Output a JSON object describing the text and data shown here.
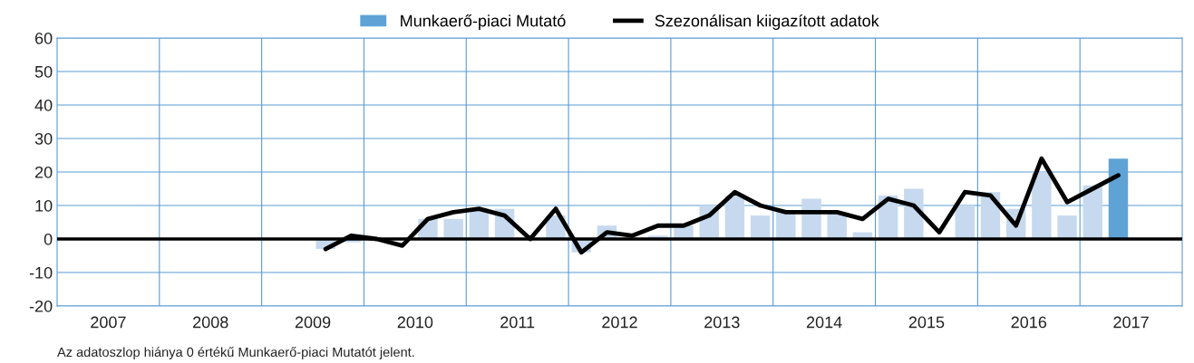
{
  "chart_data": {
    "type": "bar",
    "x": [
      2009.125,
      2009.375,
      2009.625,
      2009.875,
      2010.125,
      2010.375,
      2010.625,
      2010.875,
      2011.125,
      2011.375,
      2011.625,
      2011.875,
      2012.125,
      2012.375,
      2012.625,
      2012.875,
      2013.125,
      2013.375,
      2013.625,
      2013.875,
      2014.125,
      2014.375,
      2014.625,
      2014.875,
      2015.125,
      2015.375,
      2015.625,
      2015.875,
      2016.125,
      2016.375,
      2016.625,
      2016.875
    ],
    "series": [
      {
        "name": "Munkaerő-piaci Mutató",
        "color": "#5fa3d6",
        "colors": [
          "#c6d9ee",
          "#c6d9ee",
          "#c6d9ee",
          "#c6d9ee",
          "#c6d9ee",
          "#c6d9ee",
          "#c6d9ee",
          "#c6d9ee",
          "#c6d9ee",
          "#c6d9ee",
          "#c6d9ee",
          "#c6d9ee",
          "#c6d9ee",
          "#c6d9ee",
          "#c6d9ee",
          "#c6d9ee",
          "#c6d9ee",
          "#c6d9ee",
          "#c6d9ee",
          "#c6d9ee",
          "#c6d9ee",
          "#c6d9ee",
          "#c6d9ee",
          "#c6d9ee",
          "#c6d9ee",
          "#c6d9ee",
          "#c6d9ee",
          "#c6d9ee",
          "#c6d9ee",
          "#c6d9ee",
          "#c6d9ee",
          "#5fa3d6"
        ],
        "values": [
          -3,
          -1,
          0,
          0,
          6,
          6,
          9,
          9,
          0,
          7,
          -4,
          4,
          0,
          1,
          4,
          10,
          13,
          7,
          8,
          12,
          8,
          2,
          13,
          15,
          0,
          10,
          14,
          9,
          20,
          7,
          16,
          24
        ]
      },
      {
        "name": "Szezonálisan kiigazított adatok",
        "type": "line",
        "color": "#000000",
        "line_style": "solid",
        "values": [
          -3,
          1,
          0,
          -2,
          6,
          8,
          9,
          7,
          0,
          9,
          -4,
          2,
          1,
          4,
          4,
          7,
          14,
          10,
          8,
          8,
          8,
          6,
          12,
          10,
          2,
          14,
          13,
          4,
          24,
          11,
          15,
          19
        ]
      }
    ],
    "xlim": [
      2006.5,
      2017.5
    ],
    "xticks": [
      2007,
      {
        "value": 2007.5,
        "label": null
      },
      2008,
      {
        "value": 2008.5,
        "label": null
      },
      2009,
      {
        "value": 2009.5,
        "label": null
      },
      2010,
      {
        "value": 2010.5,
        "label": null
      },
      2011,
      {
        "value": 2011.5,
        "label": null
      },
      2012,
      {
        "value": 2012.5,
        "label": null
      },
      2013,
      {
        "value": 2013.5,
        "label": null
      },
      2014,
      {
        "value": 2014.5,
        "label": null
      },
      2015,
      {
        "value": 2015.5,
        "label": null
      },
      2016,
      {
        "value": 2016.5,
        "label": null
      },
      2017
    ],
    "ylim": [
      -20,
      60
    ],
    "yticks": [
      -20,
      -10,
      0,
      10,
      20,
      30,
      40,
      50,
      60
    ],
    "grid": true,
    "legend": "top",
    "ref_lines": [
      {
        "axis": "y",
        "value": 0,
        "color": "#000000",
        "line_style": "solid"
      }
    ],
    "annotations": [
      "Az adatoszlop hiánya 0 értékű Munkaerő-piaci Mutatót jelent."
    ]
  }
}
